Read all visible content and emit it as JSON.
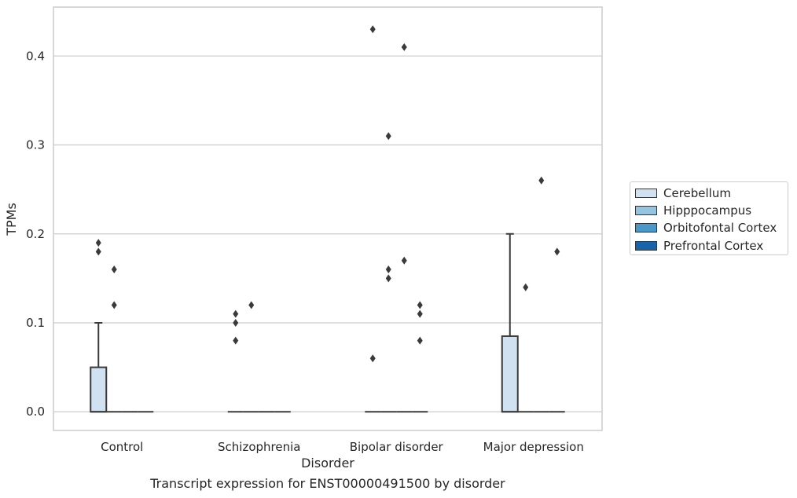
{
  "chart_data": {
    "type": "box",
    "title": "Transcript expression for ENST00000491500 by disorder",
    "xlabel": "Disorder",
    "ylabel": "TPMs",
    "categories": [
      "Control",
      "Schizophrenia",
      "Bipolar disorder",
      "Major depression"
    ],
    "ylim": [
      -0.021,
      0.455
    ],
    "yticks": [
      0.0,
      0.1,
      0.2,
      0.3,
      0.4
    ],
    "ytick_labels": [
      "0.0",
      "0.1",
      "0.2",
      "0.3",
      "0.4"
    ],
    "grid": "horizontal",
    "legend_position": "right",
    "series": [
      {
        "name": "Cerebellum",
        "color": "#d0e1f2",
        "boxes": [
          {
            "category": "Control",
            "min": 0.0,
            "q1": 0.0,
            "median": 0.0,
            "q3": 0.05,
            "max": 0.1,
            "outliers": [
              0.19,
              0.18
            ]
          },
          {
            "category": "Schizophrenia",
            "min": 0.0,
            "q1": 0.0,
            "median": 0.0,
            "q3": 0.0,
            "max": 0.0,
            "outliers": [
              0.11,
              0.1,
              0.08
            ]
          },
          {
            "category": "Bipolar disorder",
            "min": 0.0,
            "q1": 0.0,
            "median": 0.0,
            "q3": 0.0,
            "max": 0.0,
            "outliers": [
              0.43,
              0.06
            ]
          },
          {
            "category": "Major depression",
            "min": 0.0,
            "q1": 0.0,
            "median": 0.0,
            "q3": 0.085,
            "max": 0.2,
            "outliers": []
          }
        ]
      },
      {
        "name": "Hipppocampus",
        "color": "#94c4df",
        "boxes": [
          {
            "category": "Control",
            "min": 0.0,
            "q1": 0.0,
            "median": 0.0,
            "q3": 0.0,
            "max": 0.0,
            "outliers": [
              0.16,
              0.12
            ]
          },
          {
            "category": "Schizophrenia",
            "min": 0.0,
            "q1": 0.0,
            "median": 0.0,
            "q3": 0.0,
            "max": 0.0,
            "outliers": [
              0.12
            ]
          },
          {
            "category": "Bipolar disorder",
            "min": 0.0,
            "q1": 0.0,
            "median": 0.0,
            "q3": 0.0,
            "max": 0.0,
            "outliers": [
              0.31,
              0.16,
              0.15
            ]
          },
          {
            "category": "Major depression",
            "min": 0.0,
            "q1": 0.0,
            "median": 0.0,
            "q3": 0.0,
            "max": 0.0,
            "outliers": [
              0.14
            ]
          }
        ]
      },
      {
        "name": "Orbitofontal Cortex",
        "color": "#4a98c9",
        "boxes": [
          {
            "category": "Control",
            "min": 0.0,
            "q1": 0.0,
            "median": 0.0,
            "q3": 0.0,
            "max": 0.0,
            "outliers": []
          },
          {
            "category": "Schizophrenia",
            "min": 0.0,
            "q1": 0.0,
            "median": 0.0,
            "q3": 0.0,
            "max": 0.0,
            "outliers": []
          },
          {
            "category": "Bipolar disorder",
            "min": 0.0,
            "q1": 0.0,
            "median": 0.0,
            "q3": 0.0,
            "max": 0.0,
            "outliers": [
              0.41,
              0.17
            ]
          },
          {
            "category": "Major depression",
            "min": 0.0,
            "q1": 0.0,
            "median": 0.0,
            "q3": 0.0,
            "max": 0.0,
            "outliers": [
              0.26
            ]
          }
        ]
      },
      {
        "name": "Prefrontal Cortex",
        "color": "#1764ab",
        "boxes": [
          {
            "category": "Control",
            "min": 0.0,
            "q1": 0.0,
            "median": 0.0,
            "q3": 0.0,
            "max": 0.0,
            "outliers": []
          },
          {
            "category": "Schizophrenia",
            "min": 0.0,
            "q1": 0.0,
            "median": 0.0,
            "q3": 0.0,
            "max": 0.0,
            "outliers": []
          },
          {
            "category": "Bipolar disorder",
            "min": 0.0,
            "q1": 0.0,
            "median": 0.0,
            "q3": 0.0,
            "max": 0.0,
            "outliers": [
              0.12,
              0.11,
              0.08
            ]
          },
          {
            "category": "Major depression",
            "min": 0.0,
            "q1": 0.0,
            "median": 0.0,
            "q3": 0.0,
            "max": 0.0,
            "outliers": [
              0.18
            ]
          }
        ]
      }
    ]
  }
}
